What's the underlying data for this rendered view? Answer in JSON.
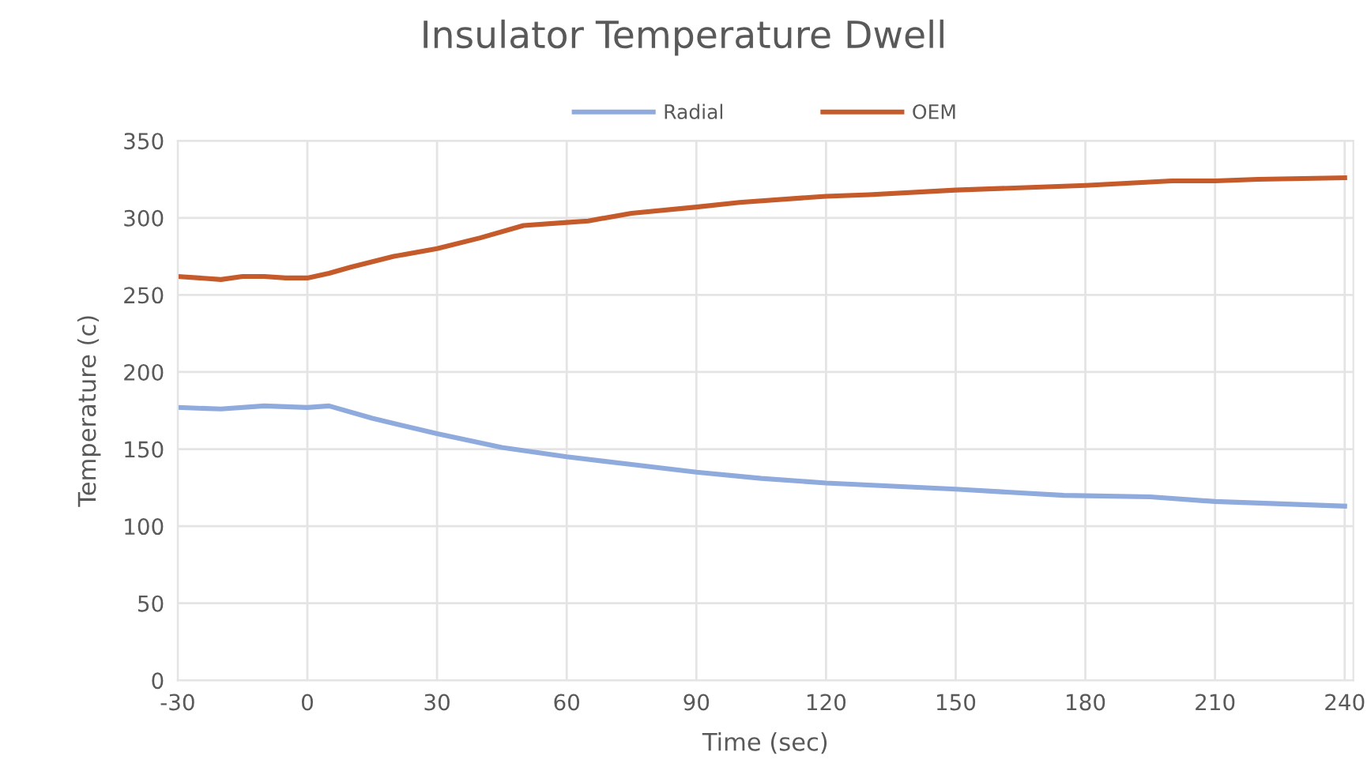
{
  "chart_data": {
    "type": "line",
    "title": "Insulator Temperature Dwell",
    "xlabel": "Time (sec)",
    "ylabel": "Temperature (c)",
    "xlim": [
      -30,
      242
    ],
    "xticks": [
      -30,
      0,
      30,
      60,
      90,
      120,
      150,
      180,
      210,
      240
    ],
    "ylim": [
      0,
      350
    ],
    "yticks": [
      0,
      50,
      100,
      150,
      200,
      250,
      300,
      350
    ],
    "grid": true,
    "legend": "top",
    "marker": "none",
    "line_style": "solid",
    "series": [
      {
        "name": "Radial",
        "color": "#8faadc",
        "x": [
          -30,
          -20,
          -10,
          0,
          5,
          15,
          30,
          45,
          60,
          75,
          90,
          105,
          120,
          150,
          175,
          195,
          210,
          240
        ],
        "values": [
          177,
          176,
          178,
          177,
          178,
          170,
          160,
          151,
          145,
          140,
          135,
          131,
          128,
          124,
          120,
          119,
          116,
          113
        ]
      },
      {
        "name": "OEM",
        "color": "#c55a2b",
        "x": [
          -30,
          -20,
          -15,
          -10,
          -5,
          0,
          5,
          10,
          20,
          30,
          40,
          50,
          60,
          65,
          75,
          90,
          100,
          120,
          130,
          150,
          180,
          200,
          210,
          220,
          240
        ],
        "values": [
          262,
          260,
          262,
          262,
          261,
          261,
          264,
          268,
          275,
          280,
          287,
          295,
          297,
          298,
          303,
          307,
          310,
          314,
          315,
          318,
          321,
          324,
          324,
          325,
          326
        ]
      }
    ]
  }
}
